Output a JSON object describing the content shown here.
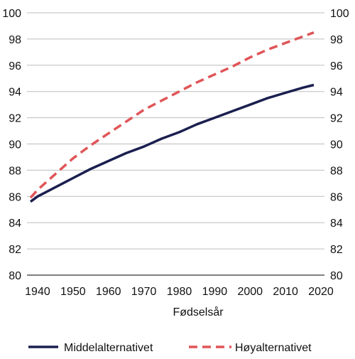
{
  "chart_data": {
    "type": "line",
    "title": "",
    "xlabel": "Fødselsår",
    "ylabel": "",
    "xlim": [
      1937,
      2021
    ],
    "ylim": [
      80,
      100
    ],
    "x_ticks": [
      1940,
      1950,
      1960,
      1970,
      1980,
      1990,
      2000,
      2010,
      2020
    ],
    "y_ticks": [
      80,
      82,
      84,
      86,
      88,
      90,
      92,
      94,
      96,
      98,
      100
    ],
    "y_axis_both_sides": true,
    "grid": "horizontal",
    "legend_position": "bottom",
    "series": [
      {
        "name": "Middelalternativet",
        "color": "#1b1f4f",
        "style": "solid",
        "x": [
          1938,
          1940,
          1945,
          1950,
          1955,
          1960,
          1965,
          1970,
          1975,
          1980,
          1985,
          1990,
          1995,
          2000,
          2005,
          2010,
          2015,
          2018
        ],
        "y": [
          85.6,
          86.0,
          86.7,
          87.4,
          88.1,
          88.7,
          89.3,
          89.8,
          90.4,
          90.9,
          91.5,
          92.0,
          92.5,
          93.0,
          93.5,
          93.9,
          94.3,
          94.5
        ]
      },
      {
        "name": "Høyalternativet",
        "color": "#e05558",
        "style": "dashed",
        "x": [
          1938,
          1940,
          1945,
          1950,
          1955,
          1960,
          1965,
          1970,
          1975,
          1980,
          1985,
          1990,
          1995,
          2000,
          2005,
          2010,
          2015,
          2018
        ],
        "y": [
          85.9,
          86.5,
          87.7,
          88.9,
          89.9,
          90.8,
          91.7,
          92.6,
          93.3,
          94.0,
          94.7,
          95.3,
          95.9,
          96.6,
          97.2,
          97.7,
          98.2,
          98.5
        ]
      }
    ]
  }
}
